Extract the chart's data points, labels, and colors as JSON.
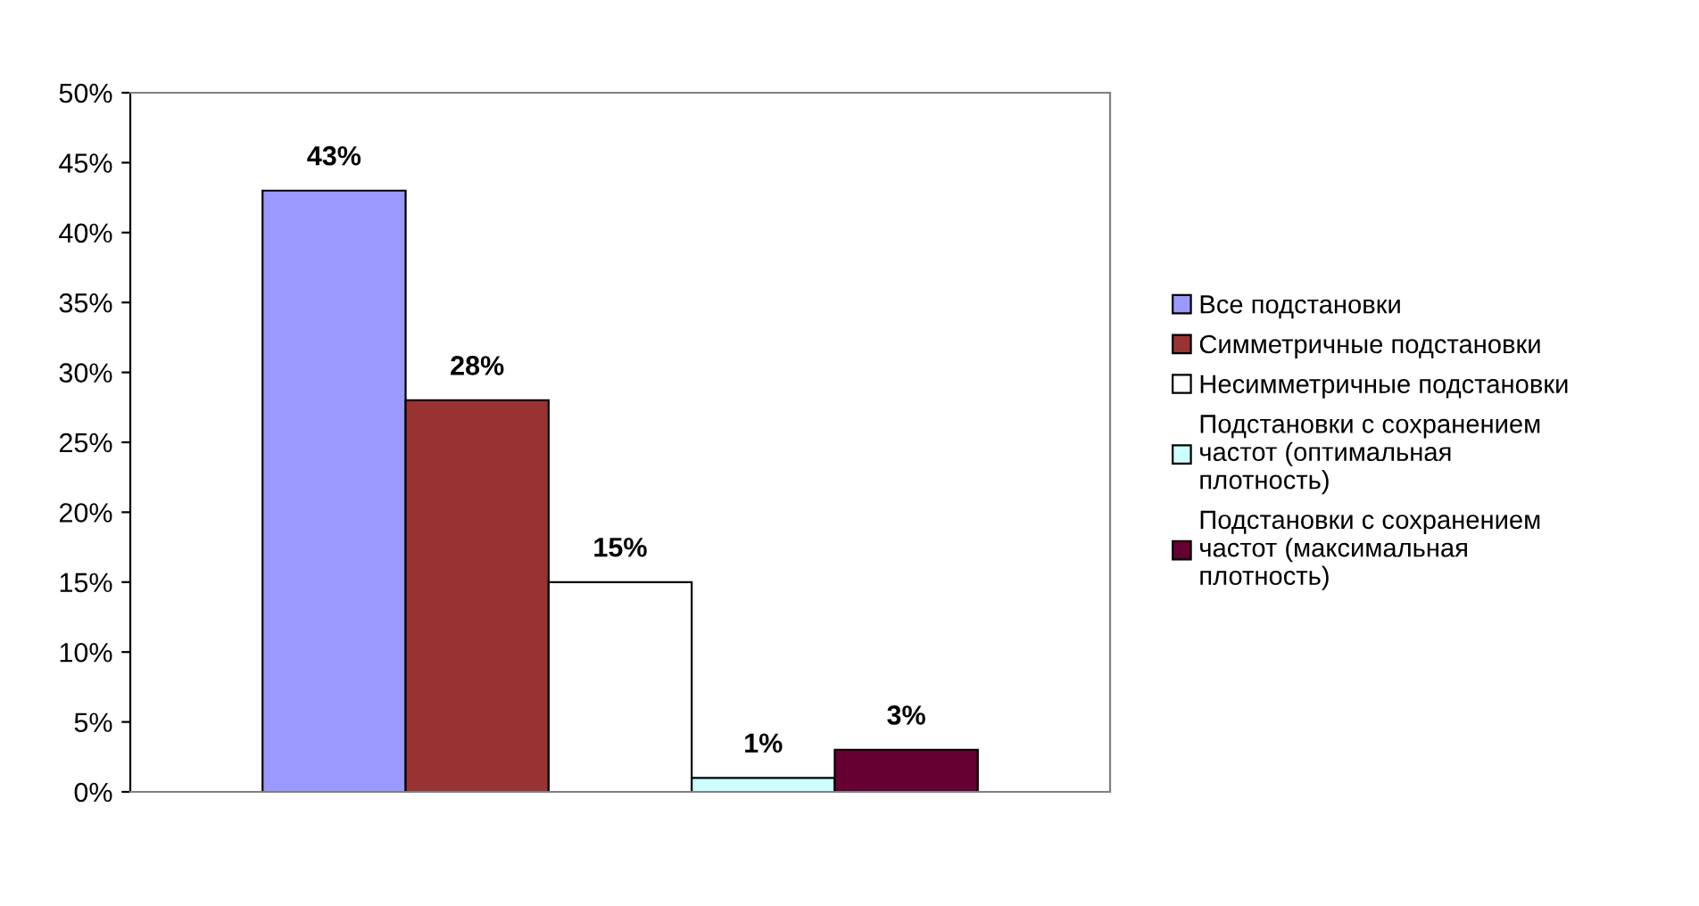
{
  "chart_data": {
    "type": "bar",
    "categories": [
      null
    ],
    "series": [
      {
        "name": "Все подстановки",
        "color": "#9999ff",
        "values": [
          43
        ],
        "value_labels": [
          "43%"
        ]
      },
      {
        "name": "Симметричные подстановки",
        "color": "#993333",
        "values": [
          28
        ],
        "value_labels": [
          "28%"
        ]
      },
      {
        "name": "Несимметричные подстановки",
        "color": "#ffffff",
        "values": [
          15
        ],
        "value_labels": [
          "15%"
        ]
      },
      {
        "name": "Подстановки с сохранением частот (оптимальная плотность)",
        "color": "#ccffff",
        "values": [
          1
        ],
        "value_labels": [
          "1%"
        ]
      },
      {
        "name": "Подстановки с сохранением частот (максимальная плотность)",
        "color": "#660033",
        "values": [
          3
        ],
        "value_labels": [
          "3%"
        ]
      }
    ],
    "ylim": [
      0,
      50
    ],
    "yticks": [
      {
        "value": 0,
        "label": "0%"
      },
      {
        "value": 5,
        "label": "5%"
      },
      {
        "value": 10,
        "label": "10%"
      },
      {
        "value": 15,
        "label": "15%"
      },
      {
        "value": 20,
        "label": "20%"
      },
      {
        "value": 25,
        "label": "25%"
      },
      {
        "value": 30,
        "label": "30%"
      },
      {
        "value": 35,
        "label": "35%"
      },
      {
        "value": 40,
        "label": "40%"
      },
      {
        "value": 45,
        "label": "45%"
      },
      {
        "value": 50,
        "label": "50%"
      }
    ],
    "grid": false,
    "legend": "right"
  }
}
